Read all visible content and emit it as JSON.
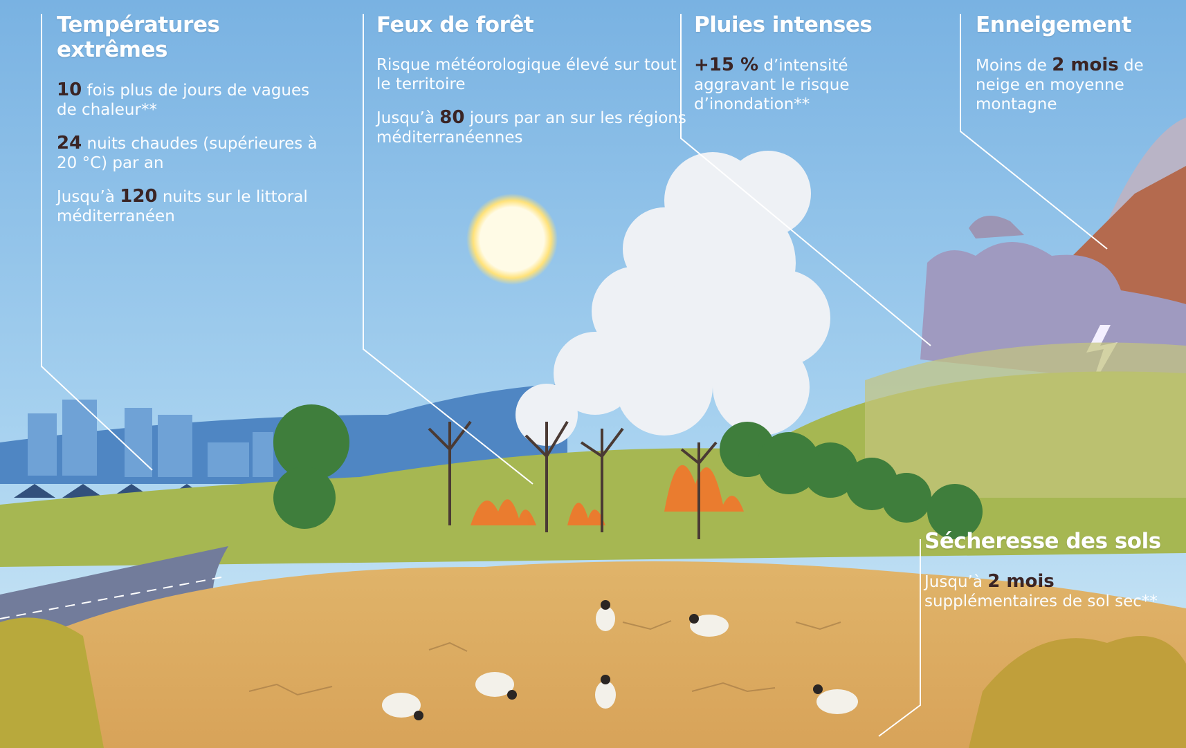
{
  "panels": [
    {
      "title": "Températures extrêmes",
      "items": [
        [
          {
            "strong": "10"
          },
          {
            "text": " fois plus de jours de vagues de chaleur**"
          }
        ],
        [
          {
            "strong": "24"
          },
          {
            "text": " nuits chaudes (supérieures à 20 °C) par an"
          }
        ],
        [
          {
            "text": "Jusqu’à "
          },
          {
            "strong": "120"
          },
          {
            "text": " nuits sur le littoral méditerranéen"
          }
        ]
      ]
    },
    {
      "title": "Feux de forêt",
      "items": [
        [
          {
            "text": "Risque météorologique élevé sur tout le territoire"
          }
        ],
        [
          {
            "text": "Jusqu’à "
          },
          {
            "strong": "80"
          },
          {
            "text": " jours par an sur les régions méditerranéennes"
          }
        ]
      ]
    },
    {
      "title": "Pluies intenses",
      "items": [
        [
          {
            "strong": "+15 %"
          },
          {
            "text": " d’intensité aggravant le risque d’inondation**"
          }
        ]
      ]
    },
    {
      "title": "Enneigement",
      "items": [
        [
          {
            "text": "Moins de "
          },
          {
            "strong": "2 mois"
          },
          {
            "text": " de neige en moyenne montagne"
          }
        ]
      ]
    },
    {
      "title": "Sécheresse des sols",
      "items": [
        [
          {
            "text": "Jusqu’à "
          },
          {
            "strong": "2 mois"
          },
          {
            "text": " supplémentaires de sol sec**"
          }
        ]
      ]
    }
  ]
}
